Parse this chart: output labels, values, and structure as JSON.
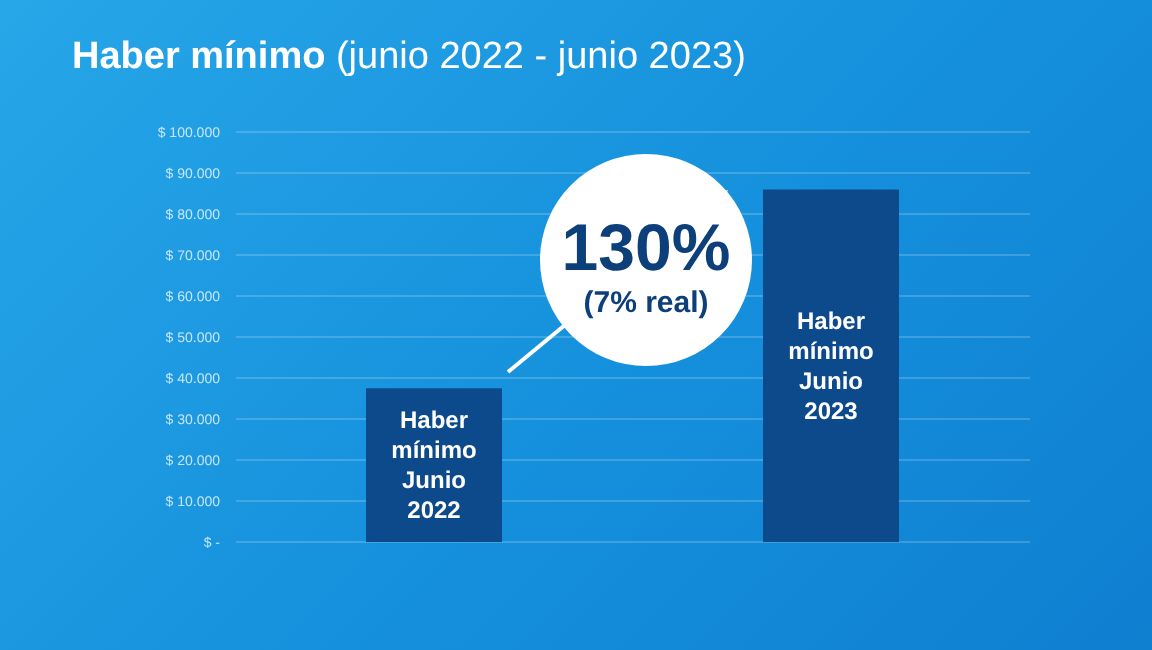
{
  "chart_data": {
    "type": "bar",
    "title": "Haber mínimo (junio 2022 - junio 2023)",
    "categories": [
      "Haber mínimo Junio 2022",
      "Haber mínimo Junio 2023"
    ],
    "values": [
      37500,
      86000
    ],
    "color": "#0d4a8c",
    "ylim": [
      0,
      100000
    ],
    "yticks": [
      {
        "value": 0,
        "label": "$ -"
      },
      {
        "value": 10000,
        "label": "$ 10.000"
      },
      {
        "value": 20000,
        "label": "$ 20.000"
      },
      {
        "value": 30000,
        "label": "$ 30.000"
      },
      {
        "value": 40000,
        "label": "$ 40.000"
      },
      {
        "value": 50000,
        "label": "$ 50.000"
      },
      {
        "value": 60000,
        "label": "$ 60.000"
      },
      {
        "value": 70000,
        "label": "$ 70.000"
      },
      {
        "value": 80000,
        "label": "$ 80.000"
      },
      {
        "value": 90000,
        "label": "$ 90.000"
      },
      {
        "value": 100000,
        "label": "$ 100.000"
      }
    ],
    "grid": "y",
    "annotations": [
      "130%",
      "(7% real)"
    ]
  }
}
